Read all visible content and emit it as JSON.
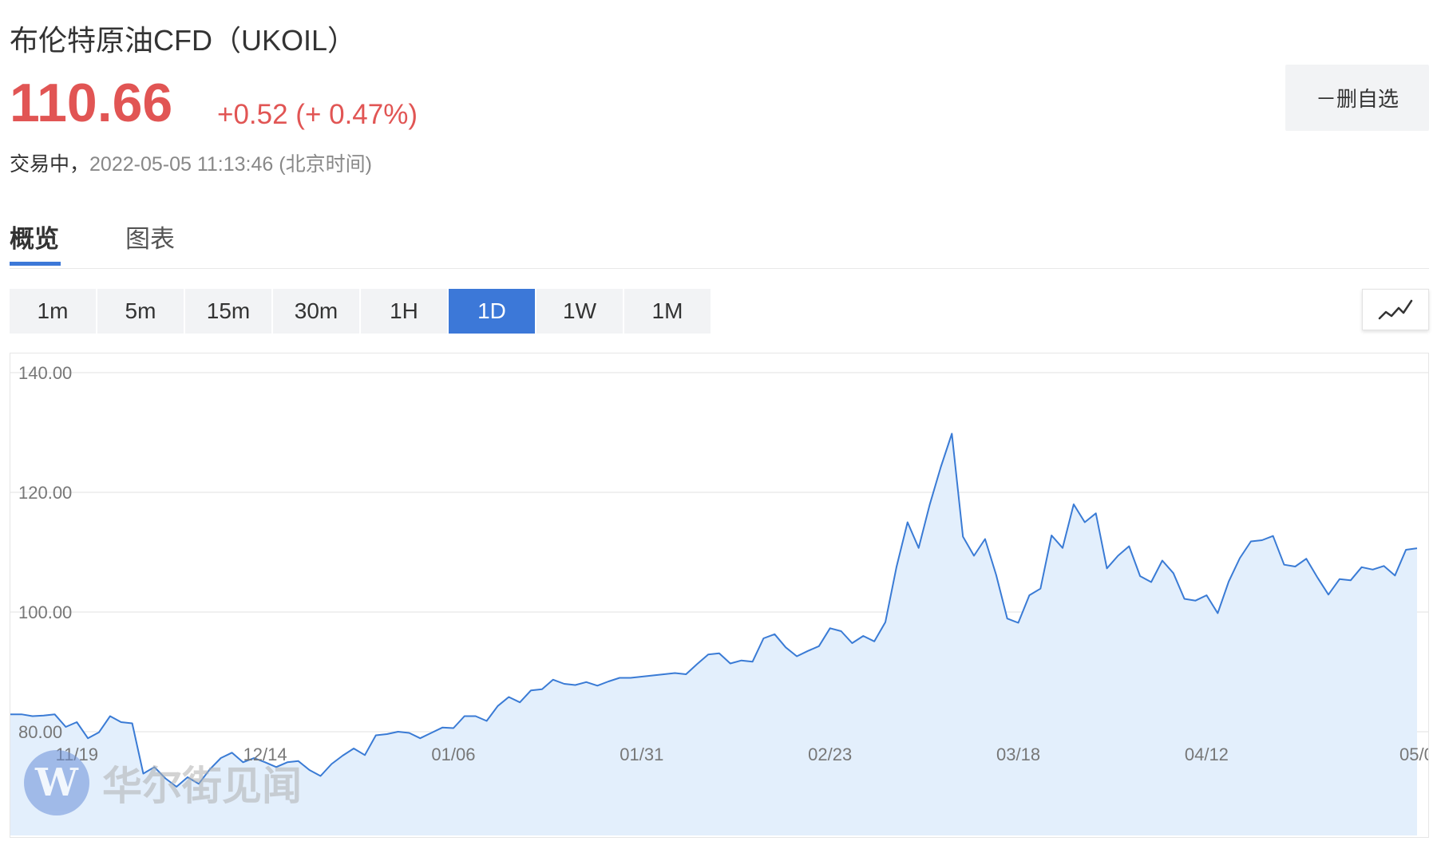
{
  "header": {
    "title": "布伦特原油CFD（UKOIL）",
    "price": "110.66",
    "change": "+0.52 (+ 0.47%)",
    "status": "交易中，",
    "timestamp": "2022-05-05 11:13:46 (北京时间)",
    "watch_button": "－删自选"
  },
  "tabs": [
    {
      "label": "概览",
      "active": true
    },
    {
      "label": "图表",
      "active": false
    }
  ],
  "ranges": [
    {
      "label": "1m",
      "active": false
    },
    {
      "label": "5m",
      "active": false
    },
    {
      "label": "15m",
      "active": false
    },
    {
      "label": "30m",
      "active": false
    },
    {
      "label": "1H",
      "active": false
    },
    {
      "label": "1D",
      "active": true
    },
    {
      "label": "1W",
      "active": false
    },
    {
      "label": "1M",
      "active": false
    }
  ],
  "chart_type_icon": "line-chart-icon",
  "watermark": {
    "logo": "W",
    "text": "华尔街见闻"
  },
  "colors": {
    "up": "#e15554",
    "accent": "#3c78d8",
    "line": "#3a7bd5",
    "fill": "#e3effc"
  },
  "chart_data": {
    "type": "area",
    "ylim": [
      70,
      140
    ],
    "y_ticks": [
      "140.00",
      "120.00",
      "100.00",
      "80.00"
    ],
    "y_tick_values": [
      140,
      120,
      100,
      80
    ],
    "x_tick_labels": [
      "11/19",
      "12/14",
      "01/06",
      "01/31",
      "02/23",
      "03/18",
      "04/12",
      "05/0"
    ],
    "x_tick_indices": [
      6,
      23,
      40,
      57,
      74,
      91,
      108,
      124
    ],
    "grid": true,
    "series": [
      {
        "values": [
          82.9,
          82.9,
          82.6,
          82.7,
          82.9,
          80.8,
          81.6,
          78.9,
          79.9,
          82.6,
          81.6,
          81.4,
          73.0,
          74.1,
          72.2,
          70.8,
          72.4,
          71.3,
          73.7,
          75.6,
          76.5,
          74.9,
          75.6,
          74.9,
          74.1,
          74.9,
          75.1,
          73.6,
          72.6,
          74.6,
          76.0,
          77.2,
          76.1,
          79.4,
          79.6,
          80.0,
          79.8,
          78.9,
          79.8,
          80.7,
          80.6,
          82.6,
          82.6,
          81.8,
          84.3,
          85.8,
          84.9,
          86.9,
          87.1,
          88.7,
          88.0,
          87.8,
          88.3,
          87.7,
          88.4,
          89.0,
          89.0,
          89.2,
          89.4,
          89.6,
          89.8,
          89.6,
          91.3,
          92.9,
          93.1,
          91.4,
          91.9,
          91.7,
          95.6,
          96.3,
          94.1,
          92.6,
          93.5,
          94.3,
          97.3,
          96.8,
          94.8,
          96.0,
          95.1,
          98.3,
          107.5,
          115.0,
          110.7,
          117.9,
          124.2,
          129.8,
          112.6,
          109.4,
          112.2,
          106.2,
          98.9,
          98.2,
          102.8,
          103.9,
          112.8,
          110.7,
          118.0,
          115.0,
          116.5,
          107.3,
          109.4,
          111.0,
          106.0,
          105.0,
          108.6,
          106.5,
          102.2,
          101.9,
          102.8,
          99.8,
          105.1,
          109.0,
          111.8,
          112.0,
          112.7,
          107.9,
          107.6,
          108.9,
          105.8,
          102.9,
          105.5,
          105.3,
          107.5,
          107.1,
          107.7,
          106.1,
          110.4,
          110.66
        ]
      }
    ]
  }
}
